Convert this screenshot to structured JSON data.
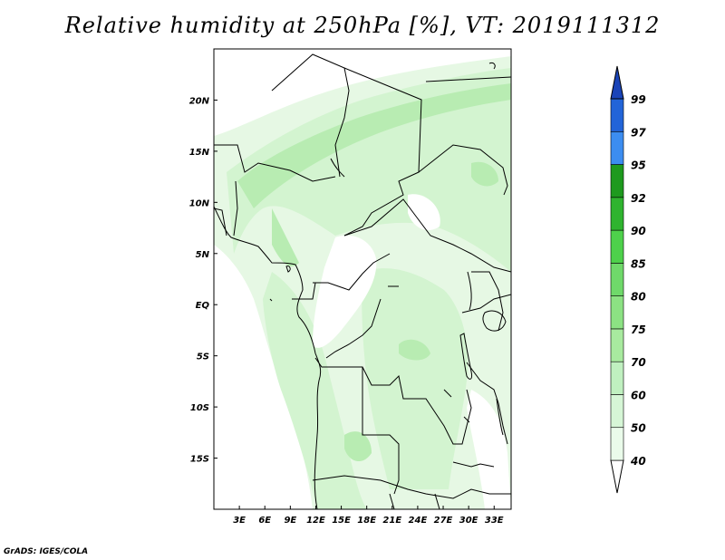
{
  "title": "Relative humidity at 250hPa [%], VT: 2019111312",
  "credit": "GrADS: IGES/COLA",
  "map": {
    "lon_range": [
      0,
      35
    ],
    "lat_range": [
      -20,
      25
    ],
    "lat_ticks": [
      {
        "value": 20,
        "label": "20N"
      },
      {
        "value": 15,
        "label": "15N"
      },
      {
        "value": 10,
        "label": "10N"
      },
      {
        "value": 5,
        "label": "5N"
      },
      {
        "value": 0,
        "label": "EQ"
      },
      {
        "value": -5,
        "label": "5S"
      },
      {
        "value": -10,
        "label": "10S"
      },
      {
        "value": -15,
        "label": "15S"
      }
    ],
    "lon_ticks": [
      {
        "value": 3,
        "label": "3E"
      },
      {
        "value": 6,
        "label": "6E"
      },
      {
        "value": 9,
        "label": "9E"
      },
      {
        "value": 12,
        "label": "12E"
      },
      {
        "value": 15,
        "label": "15E"
      },
      {
        "value": 18,
        "label": "18E"
      },
      {
        "value": 21,
        "label": "21E"
      },
      {
        "value": 24,
        "label": "24E"
      },
      {
        "value": 27,
        "label": "27E"
      },
      {
        "value": 30,
        "label": "30E"
      },
      {
        "value": 33,
        "label": "33E"
      }
    ]
  },
  "colorbar": {
    "levels": [
      40,
      50,
      60,
      70,
      75,
      80,
      85,
      90,
      92,
      95,
      97,
      99
    ],
    "colors": [
      "#ffffff",
      "#eafbea",
      "#d6f6d6",
      "#c0f0c0",
      "#a8ea9f",
      "#8ce283",
      "#6fd96a",
      "#4ed14b",
      "#2fb42f",
      "#1e9a1e",
      "#3c8df0",
      "#2264d8",
      "#1a44b8"
    ]
  }
}
